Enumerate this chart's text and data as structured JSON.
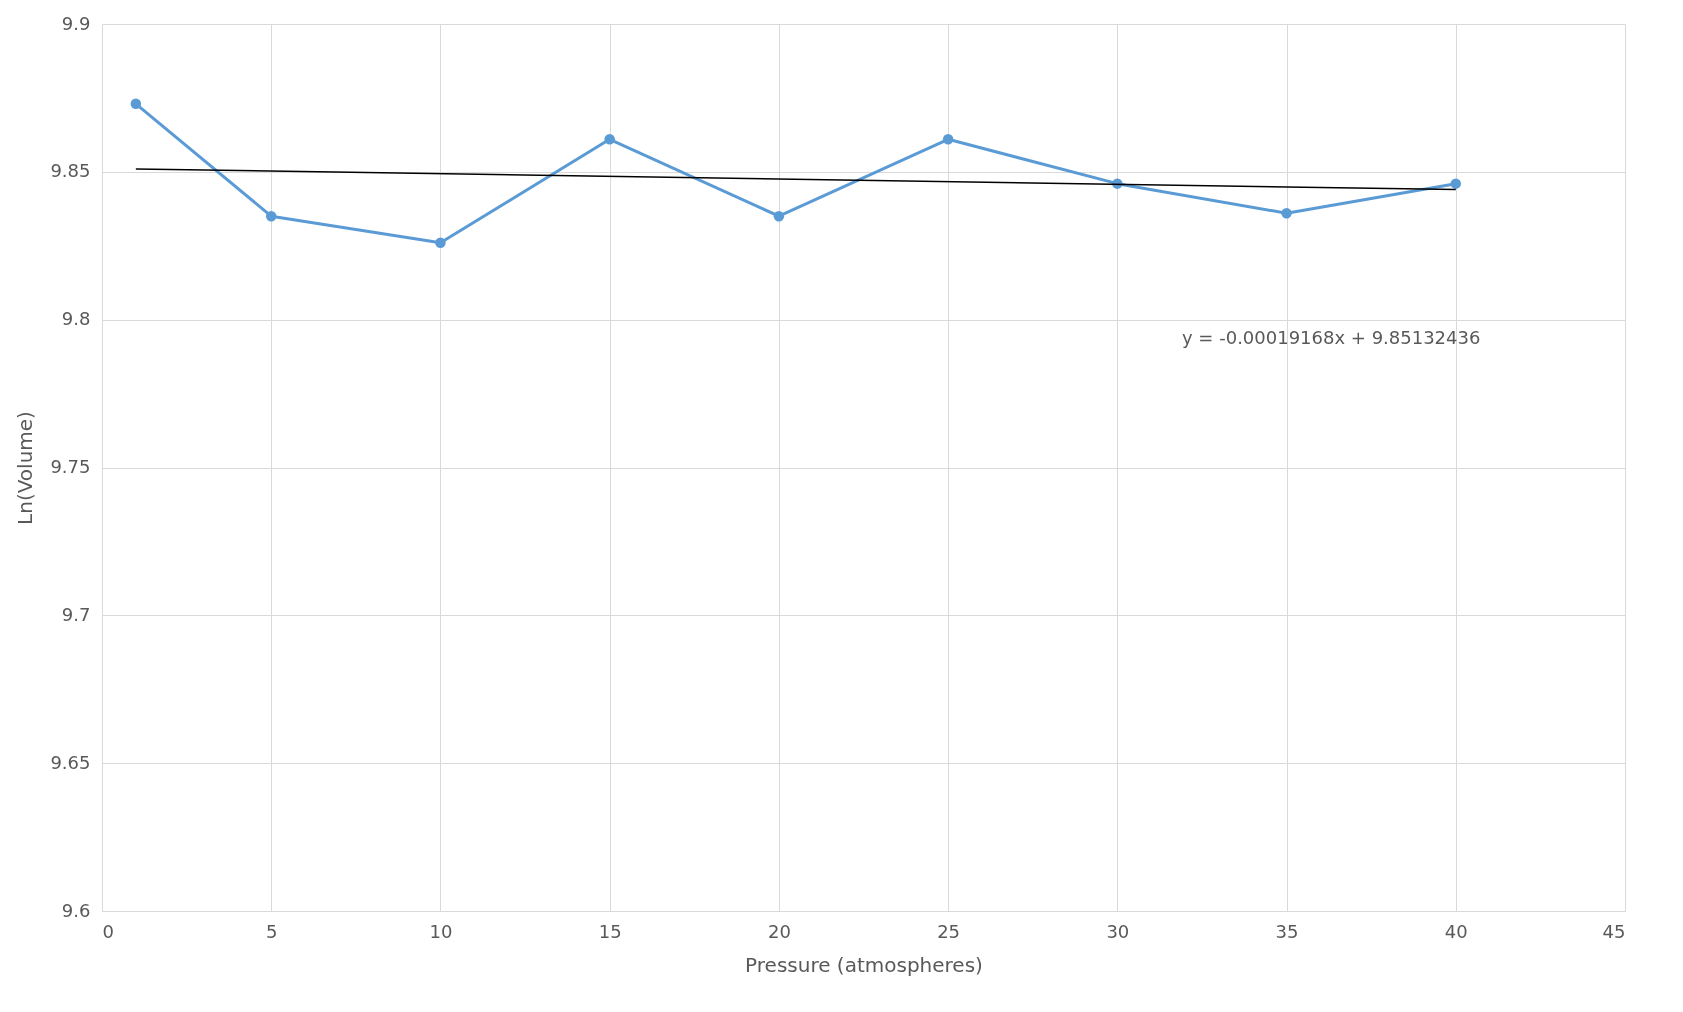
{
  "chart_data": {
    "type": "line",
    "xlabel": "Pressure (atmospheres)",
    "ylabel": "Ln(Volume)",
    "x": [
      1,
      5,
      10,
      15,
      20,
      25,
      30,
      35,
      40
    ],
    "series": [
      {
        "color": "#5b9bd5",
        "marker": "circle",
        "values": [
          9.873,
          9.835,
          9.826,
          9.861,
          9.835,
          9.861,
          9.846,
          9.836,
          9.846
        ]
      },
      {
        "color": "#000000",
        "marker": "none",
        "x": [
          1,
          40
        ],
        "values": [
          9.851,
          9.844
        ]
      }
    ],
    "xlim": [
      0,
      45
    ],
    "xticks": [
      0,
      5,
      10,
      15,
      20,
      25,
      30,
      35,
      40,
      45
    ],
    "ylim": [
      9.6,
      9.9
    ],
    "yticks": [
      9.6,
      9.65,
      9.7,
      9.75,
      9.8,
      9.85,
      9.9
    ],
    "grid": true,
    "annotations": [
      "y = -0.00019168x + 9.85132436"
    ]
  }
}
